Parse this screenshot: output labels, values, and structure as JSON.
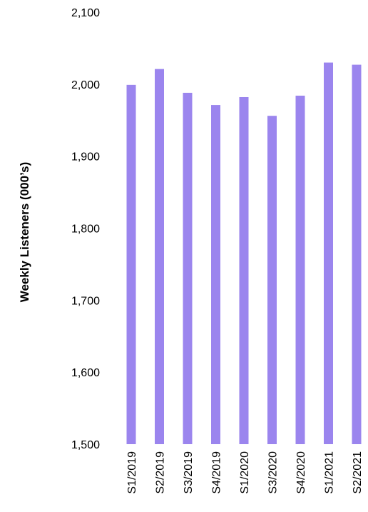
{
  "chart_data": {
    "type": "bar",
    "categories": [
      "S1/2019",
      "S2/2019",
      "S3/2019",
      "S4/2019",
      "S1/2020",
      "S3/2020",
      "S4/2020",
      "S1/2021",
      "S2/2021"
    ],
    "values": [
      1999,
      2021,
      1988,
      1971,
      1982,
      1956,
      1984,
      2030,
      2027
    ],
    "ylabel": "Weekly Listeners (000’s)",
    "ylim": [
      1500,
      2100
    ],
    "yticks": [
      1500,
      1600,
      1700,
      1800,
      1900,
      2000,
      2100
    ],
    "ytick_labels": [
      "1,500",
      "1,600",
      "1,700",
      "1,800",
      "1,900",
      "2,000",
      "2,100"
    ],
    "grid": false,
    "bar_color": "#9b85ee"
  }
}
